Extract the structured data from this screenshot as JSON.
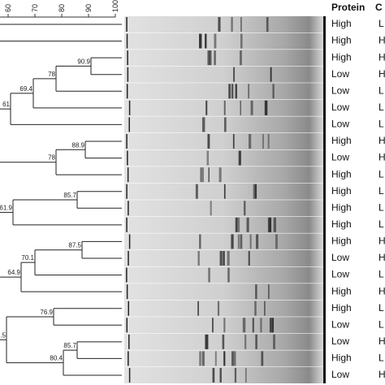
{
  "header": {
    "protein": "Protein",
    "second": "C"
  },
  "scale_ticks": [
    "60",
    "70",
    "80",
    "90",
    "100"
  ],
  "nodes": [
    {
      "label": "90.9"
    },
    {
      "label": "78"
    },
    {
      "label": "69.4"
    },
    {
      "label": "61"
    },
    {
      "label": "88.9"
    },
    {
      "label": "78"
    },
    {
      "label": "85.7"
    },
    {
      "label": "61.9"
    },
    {
      "label": "87.5"
    },
    {
      "label": "70.1"
    },
    {
      "label": "64.9"
    },
    {
      "label": "76.9"
    },
    {
      "label": "85.7"
    },
    {
      "label": "80.4"
    },
    {
      "label": ".5"
    }
  ],
  "rows": [
    {
      "protein": "High",
      "second": "L"
    },
    {
      "protein": "High",
      "second": "H"
    },
    {
      "protein": "High",
      "second": "H"
    },
    {
      "protein": "Low",
      "second": "H"
    },
    {
      "protein": "Low",
      "second": "L"
    },
    {
      "protein": "Low",
      "second": "L"
    },
    {
      "protein": "Low",
      "second": "L"
    },
    {
      "protein": "High",
      "second": "H"
    },
    {
      "protein": "Low",
      "second": "H"
    },
    {
      "protein": "High",
      "second": "L"
    },
    {
      "protein": "High",
      "second": "L"
    },
    {
      "protein": "High",
      "second": "L"
    },
    {
      "protein": "High",
      "second": "L"
    },
    {
      "protein": "High",
      "second": "H"
    },
    {
      "protein": "Low",
      "second": "H"
    },
    {
      "protein": "Low",
      "second": "L"
    },
    {
      "protein": "High",
      "second": "H"
    },
    {
      "protein": "High",
      "second": "L"
    },
    {
      "protein": "Low",
      "second": "L"
    },
    {
      "protein": "Low",
      "second": "H"
    },
    {
      "protein": "High",
      "second": "L"
    },
    {
      "protein": "Low",
      "second": "H"
    }
  ]
}
